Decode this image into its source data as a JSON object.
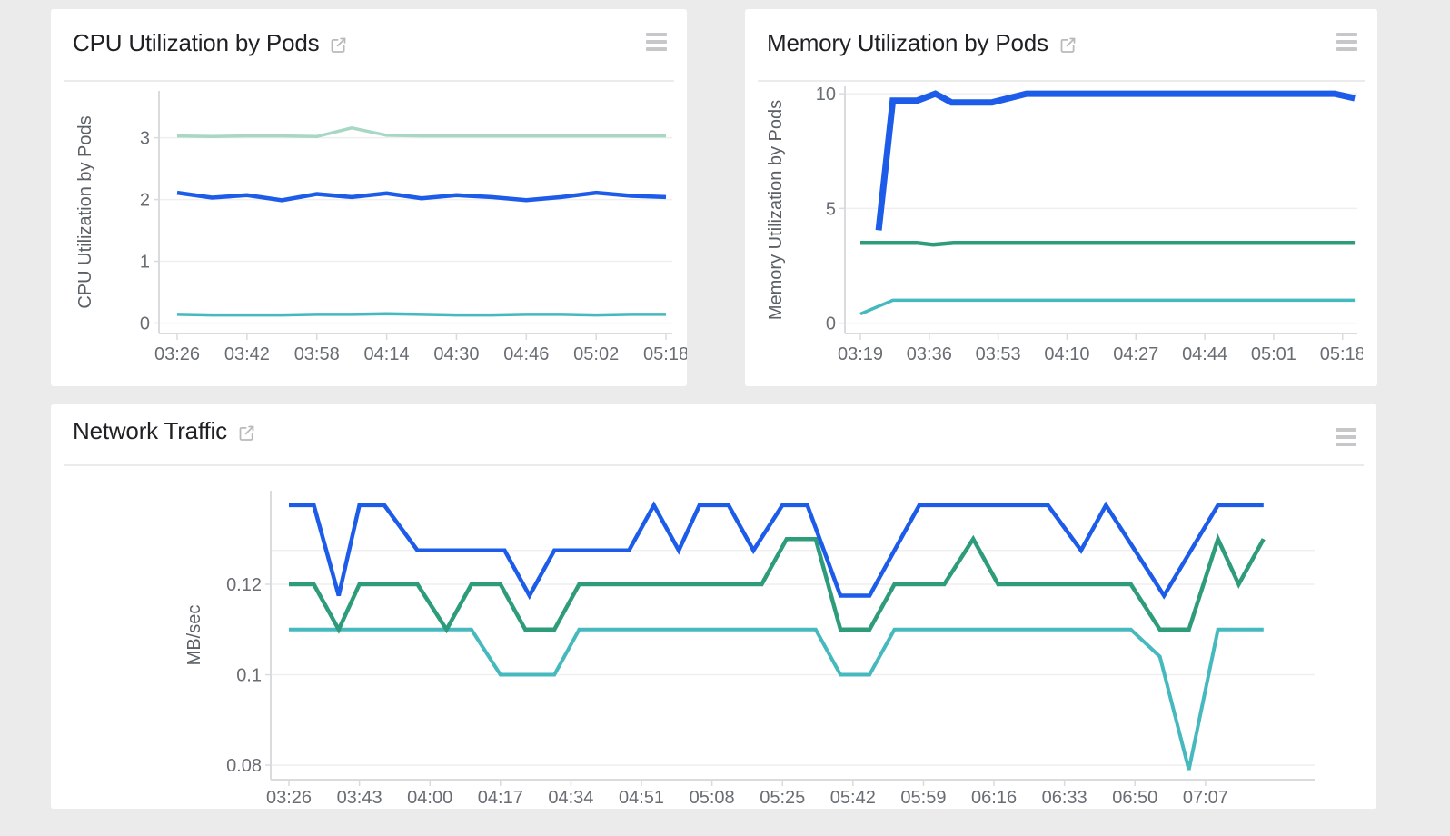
{
  "page": {
    "background": "#ebebeb",
    "card_background": "#ffffff"
  },
  "colors": {
    "blue": "#1c5ce8",
    "green": "#2e9c7a",
    "teal": "#45b9bd",
    "pale_green": "#a8d7c4",
    "grid": "#efefef",
    "axis": "#d9dbdd",
    "tick_text": "#686d74",
    "title_text": "#1f2023",
    "icon_gray": "#c5c7c9"
  },
  "cards": [
    {
      "title": "CPU Utilization by Pods",
      "external_link_icon": "open-in-new",
      "menu_icon": "hamburger-menu"
    },
    {
      "title": "Memory Utilization by Pods",
      "external_link_icon": "open-in-new",
      "menu_icon": "hamburger-menu"
    },
    {
      "title": "Network Traffic",
      "external_link_icon": "open-in-new",
      "menu_icon": "hamburger-menu"
    }
  ],
  "chart_data": [
    {
      "type": "line",
      "title": "CPU Utilization by Pods",
      "xlabel": "",
      "ylabel": "CPU Utilization by Pods",
      "legend": "none",
      "grid": true,
      "x_tick_labels": [
        "03:26",
        "03:42",
        "03:58",
        "04:14",
        "04:30",
        "04:46",
        "05:02",
        "05:18"
      ],
      "x_tick_minutes": [
        0,
        16,
        32,
        48,
        64,
        80,
        96,
        112
      ],
      "y_ticks": [
        0,
        1,
        2,
        3
      ],
      "y_tick_labels": [
        "0",
        "1",
        "2",
        "3"
      ],
      "ylim": [
        -0.17,
        3.76
      ],
      "x_minutes": [
        0,
        8,
        16,
        24,
        32,
        40,
        48,
        56,
        64,
        72,
        80,
        88,
        96,
        104,
        112
      ],
      "series": [
        {
          "name": "series-1",
          "color": "#a8d7c4",
          "line_width": 3.5,
          "values": [
            3.03,
            3.02,
            3.03,
            3.03,
            3.02,
            3.16,
            3.04,
            3.03,
            3.03,
            3.03,
            3.03,
            3.03,
            3.03,
            3.03,
            3.03
          ]
        },
        {
          "name": "series-3",
          "color": "#45b9bd",
          "line_width": 3.5,
          "values": [
            0.14,
            0.13,
            0.13,
            0.13,
            0.14,
            0.14,
            0.15,
            0.14,
            0.13,
            0.13,
            0.14,
            0.14,
            0.13,
            0.14,
            0.14
          ]
        },
        {
          "name": "series-2",
          "color": "#1c5ce8",
          "line_width": 4.5,
          "values": [
            2.11,
            2.03,
            2.07,
            1.99,
            2.09,
            2.04,
            2.1,
            2.02,
            2.07,
            2.04,
            1.99,
            2.04,
            2.11,
            2.06,
            2.04
          ]
        }
      ]
    },
    {
      "type": "line",
      "title": "Memory Utilization by Pods",
      "xlabel": "",
      "ylabel": "Memory Utilization by Pods",
      "legend": "none",
      "grid": true,
      "x_tick_labels": [
        "03:19",
        "03:36",
        "03:53",
        "04:10",
        "04:27",
        "04:44",
        "05:01",
        "05:18"
      ],
      "x_tick_minutes": [
        0,
        17,
        34,
        51,
        68,
        85,
        102,
        119
      ],
      "y_ticks": [
        0,
        5,
        10
      ],
      "y_tick_labels": [
        "0",
        "5",
        "10"
      ],
      "ylim": [
        -0.45,
        10.32
      ],
      "series": [
        {
          "name": "series-2",
          "color": "#2e9c7a",
          "line_width": 4.5,
          "points": [
            [
              0,
              3.5
            ],
            [
              14,
              3.5
            ],
            [
              18,
              3.42
            ],
            [
              23,
              3.5
            ],
            [
              122,
              3.5
            ]
          ]
        },
        {
          "name": "series-3",
          "color": "#45b9bd",
          "line_width": 3.5,
          "points": [
            [
              0,
              0.4
            ],
            [
              8,
              1.0
            ],
            [
              122,
              1.0
            ]
          ]
        },
        {
          "name": "series-1",
          "color": "#1c5ce8",
          "line_width": 7,
          "points": [
            [
              4.5,
              4.05
            ],
            [
              8,
              9.7
            ],
            [
              14,
              9.7
            ],
            [
              18.5,
              10
            ],
            [
              22.5,
              9.62
            ],
            [
              32.5,
              9.62
            ],
            [
              41,
              10
            ],
            [
              117,
              10
            ],
            [
              122,
              9.8
            ]
          ]
        }
      ]
    },
    {
      "type": "line",
      "title": "Network Traffic",
      "xlabel": "",
      "ylabel": "MB/sec",
      "legend": "none",
      "grid": true,
      "x_tick_labels": [
        "03:26",
        "03:43",
        "04:00",
        "04:17",
        "04:34",
        "04:51",
        "05:08",
        "05:25",
        "05:42",
        "05:59",
        "06:16",
        "06:33",
        "06:50",
        "07:07"
      ],
      "x_tick_minutes": [
        0,
        17,
        34,
        51,
        68,
        85,
        102,
        119,
        136,
        153,
        170,
        187,
        204,
        221
      ],
      "y_ticks": [
        0.08,
        0.1,
        0.12
      ],
      "y_tick_labels": [
        "0.08",
        "0.1",
        "0.12"
      ],
      "extra_gridlines": [
        0.1275
      ],
      "ylim": [
        0.0768,
        0.1407
      ],
      "series": [
        {
          "name": "series-3",
          "color": "#45b9bd",
          "line_width": 4,
          "points": [
            [
              0,
              0.11
            ],
            [
              44,
              0.11
            ],
            [
              51,
              0.1
            ],
            [
              64,
              0.1
            ],
            [
              70,
              0.11
            ],
            [
              127,
              0.11
            ],
            [
              133,
              0.1
            ],
            [
              140,
              0.1
            ],
            [
              146,
              0.11
            ],
            [
              203,
              0.11
            ],
            [
              210,
              0.104
            ],
            [
              217,
              0.079
            ],
            [
              224,
              0.11
            ],
            [
              235,
              0.11
            ]
          ]
        },
        {
          "name": "series-2",
          "color": "#2e9c7a",
          "line_width": 4.5,
          "points": [
            [
              0,
              0.12
            ],
            [
              6,
              0.12
            ],
            [
              12,
              0.11
            ],
            [
              17,
              0.12
            ],
            [
              31,
              0.12
            ],
            [
              38,
              0.11
            ],
            [
              44,
              0.12
            ],
            [
              51,
              0.12
            ],
            [
              57,
              0.11
            ],
            [
              64,
              0.11
            ],
            [
              70,
              0.12
            ],
            [
              114,
              0.12
            ],
            [
              120,
              0.13
            ],
            [
              127,
              0.13
            ],
            [
              133,
              0.11
            ],
            [
              140,
              0.11
            ],
            [
              146,
              0.12
            ],
            [
              158,
              0.12
            ],
            [
              165,
              0.13
            ],
            [
              171,
              0.12
            ],
            [
              203,
              0.12
            ],
            [
              210,
              0.11
            ],
            [
              217,
              0.11
            ],
            [
              224,
              0.13
            ],
            [
              229,
              0.12
            ],
            [
              235,
              0.13
            ]
          ]
        },
        {
          "name": "series-1",
          "color": "#1c5ce8",
          "line_width": 4.5,
          "points": [
            [
              0,
              0.1375
            ],
            [
              6,
              0.1375
            ],
            [
              12,
              0.1175
            ],
            [
              17,
              0.1375
            ],
            [
              23,
              0.1375
            ],
            [
              31,
              0.1275
            ],
            [
              52,
              0.1275
            ],
            [
              58,
              0.1175
            ],
            [
              64,
              0.1275
            ],
            [
              82,
              0.1275
            ],
            [
              88,
              0.1375
            ],
            [
              94,
              0.1275
            ],
            [
              99,
              0.1375
            ],
            [
              106,
              0.1375
            ],
            [
              112,
              0.1275
            ],
            [
              119,
              0.1375
            ],
            [
              125,
              0.1375
            ],
            [
              133,
              0.1175
            ],
            [
              140,
              0.1175
            ],
            [
              152,
              0.1375
            ],
            [
              183,
              0.1375
            ],
            [
              191,
              0.1275
            ],
            [
              197,
              0.1375
            ],
            [
              211,
              0.1175
            ],
            [
              224,
              0.1375
            ],
            [
              235,
              0.1375
            ]
          ]
        }
      ]
    }
  ]
}
